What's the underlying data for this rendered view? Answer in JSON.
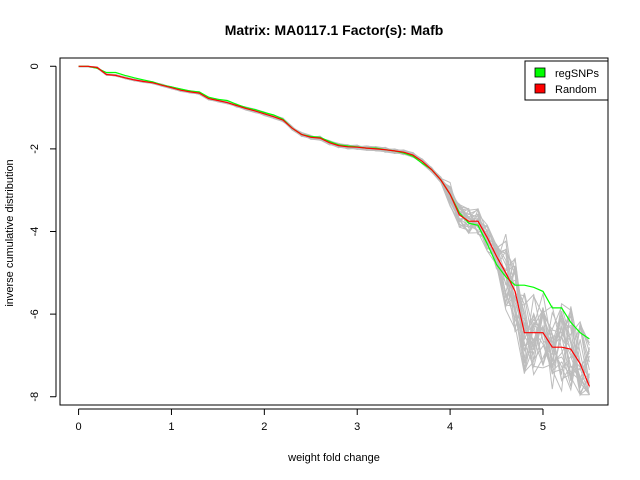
{
  "chart_data": {
    "type": "line",
    "title": "Matrix: MA0117.1 Factor(s): Mafb",
    "xlabel": "weight fold change",
    "ylabel": "inverse cumulative distribution",
    "xlim": [
      -0.2,
      5.7
    ],
    "ylim": [
      -8.2,
      0.2
    ],
    "xticks": [
      0,
      1,
      2,
      3,
      4,
      5
    ],
    "yticks": [
      0,
      -2,
      -4,
      -6,
      -8
    ],
    "grid": false,
    "legend_position": "top-right",
    "series": [
      {
        "name": "regSNPs",
        "color": "#00ff00",
        "x": [
          0,
          0.1,
          0.2,
          0.3,
          0.4,
          0.5,
          0.6,
          0.7,
          0.8,
          0.9,
          1.0,
          1.1,
          1.2,
          1.3,
          1.4,
          1.5,
          1.6,
          1.7,
          1.8,
          1.9,
          2.0,
          2.1,
          2.2,
          2.3,
          2.4,
          2.5,
          2.6,
          2.7,
          2.8,
          2.9,
          3.0,
          3.1,
          3.2,
          3.3,
          3.4,
          3.5,
          3.6,
          3.7,
          3.8,
          3.9,
          4.0,
          4.1,
          4.2,
          4.3,
          4.4,
          4.5,
          4.6,
          4.7,
          4.8,
          4.9,
          5.0,
          5.1,
          5.2,
          5.3,
          5.4,
          5.5
        ],
        "y": [
          0,
          0,
          -0.05,
          -0.15,
          -0.15,
          -0.22,
          -0.28,
          -0.33,
          -0.38,
          -0.45,
          -0.5,
          -0.55,
          -0.6,
          -0.62,
          -0.75,
          -0.8,
          -0.83,
          -0.92,
          -1.0,
          -1.05,
          -1.12,
          -1.18,
          -1.28,
          -1.5,
          -1.65,
          -1.7,
          -1.72,
          -1.82,
          -1.9,
          -1.93,
          -1.95,
          -1.98,
          -1.98,
          -2.02,
          -2.05,
          -2.1,
          -2.18,
          -2.35,
          -2.5,
          -2.75,
          -3.1,
          -3.55,
          -3.8,
          -3.85,
          -4.3,
          -4.8,
          -5.1,
          -5.3,
          -5.3,
          -5.35,
          -5.45,
          -5.85,
          -5.85,
          -6.2,
          -6.45,
          -6.6
        ]
      },
      {
        "name": "Random",
        "color": "#ff0000",
        "x": [
          0,
          0.1,
          0.2,
          0.3,
          0.4,
          0.5,
          0.6,
          0.7,
          0.8,
          0.9,
          1.0,
          1.1,
          1.2,
          1.3,
          1.4,
          1.5,
          1.6,
          1.7,
          1.8,
          1.9,
          2.0,
          2.1,
          2.2,
          2.3,
          2.4,
          2.5,
          2.6,
          2.7,
          2.8,
          2.9,
          3.0,
          3.1,
          3.2,
          3.3,
          3.4,
          3.5,
          3.6,
          3.7,
          3.8,
          3.9,
          4.0,
          4.1,
          4.2,
          4.3,
          4.4,
          4.5,
          4.6,
          4.7,
          4.8,
          4.9,
          5.0,
          5.1,
          5.2,
          5.3,
          5.4,
          5.5
        ],
        "y": [
          0,
          0,
          -0.03,
          -0.2,
          -0.22,
          -0.28,
          -0.33,
          -0.37,
          -0.4,
          -0.46,
          -0.52,
          -0.58,
          -0.62,
          -0.65,
          -0.78,
          -0.83,
          -0.88,
          -0.95,
          -1.02,
          -1.08,
          -1.15,
          -1.22,
          -1.3,
          -1.5,
          -1.65,
          -1.72,
          -1.74,
          -1.85,
          -1.92,
          -1.95,
          -1.96,
          -1.98,
          -2.0,
          -2.02,
          -2.05,
          -2.08,
          -2.15,
          -2.3,
          -2.5,
          -2.75,
          -3.1,
          -3.6,
          -3.75,
          -3.75,
          -4.15,
          -4.6,
          -5.0,
          -5.45,
          -6.45,
          -6.45,
          -6.45,
          -6.8,
          -6.8,
          -6.85,
          -7.2,
          -7.75
        ]
      }
    ]
  }
}
